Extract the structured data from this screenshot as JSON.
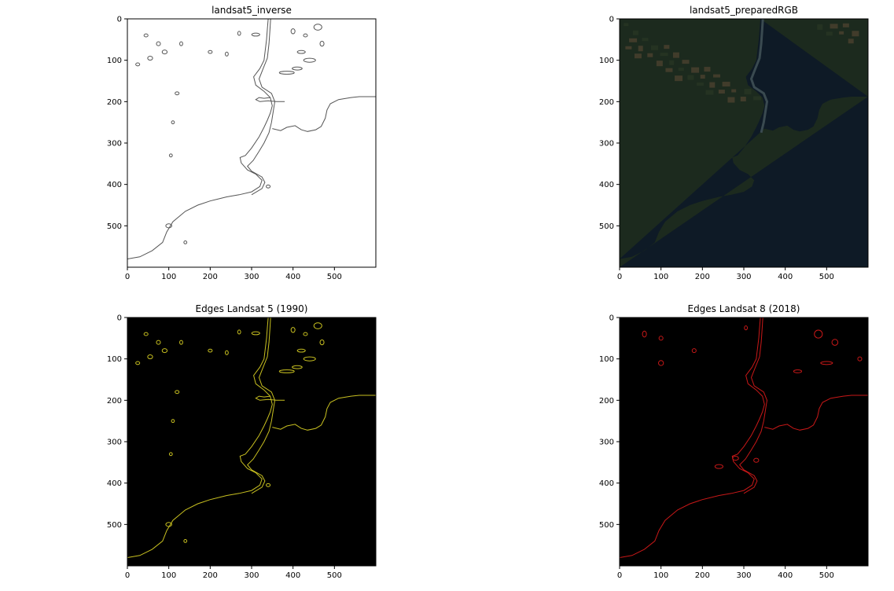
{
  "figure": {
    "panels": [
      {
        "id": "inverse",
        "title": "landsat5_inverse",
        "background": "#ffffff",
        "line_color": "#555555",
        "rgb_image": false
      },
      {
        "id": "rgb",
        "title": "landsat5_preparedRGB",
        "background": "#1c2a1e",
        "line_color": "#141e24",
        "rgb_image": true
      },
      {
        "id": "edges5",
        "title": "Edges Landsat 5 (1990)",
        "background": "#000000",
        "line_color": "#c8c020",
        "rgb_image": false
      },
      {
        "id": "edges8",
        "title": "Edges Landsat 8 (2018)",
        "background": "#000000",
        "line_color": "#c81818",
        "rgb_image": false
      }
    ]
  },
  "chart_data": {
    "type": "heatmap",
    "xlim": [
      0,
      600
    ],
    "ylim": [
      600,
      0
    ],
    "x_ticks": [
      0,
      100,
      200,
      300,
      400,
      500
    ],
    "y_ticks": [
      0,
      100,
      200,
      300,
      400,
      500
    ]
  }
}
